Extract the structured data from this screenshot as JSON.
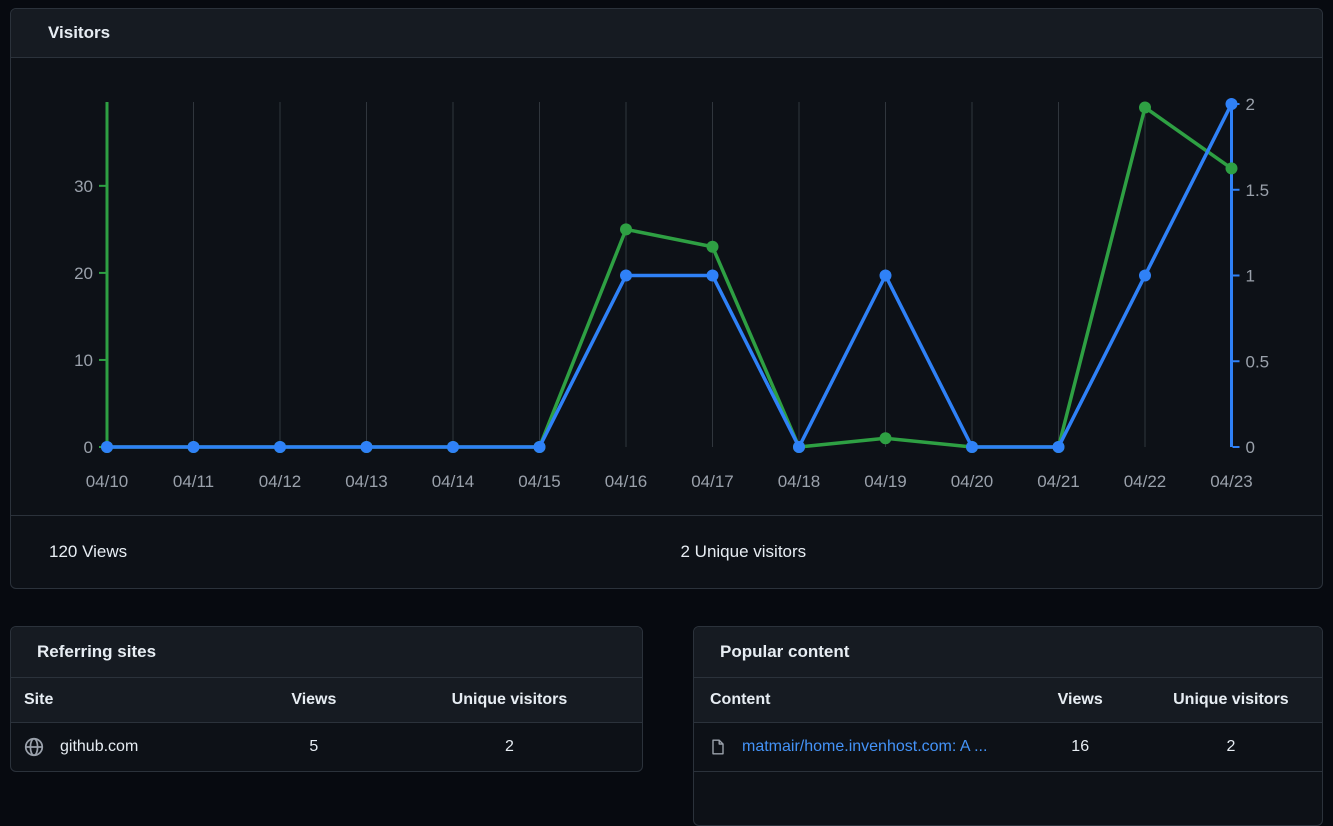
{
  "visitors_panel": {
    "title": "Visitors",
    "views_total_label": "120 Views",
    "unique_total_label": "2 Unique visitors"
  },
  "chart_data": {
    "type": "line",
    "title": "Visitors",
    "x": [
      "04/10",
      "04/11",
      "04/12",
      "04/13",
      "04/14",
      "04/15",
      "04/16",
      "04/17",
      "04/18",
      "04/19",
      "04/20",
      "04/21",
      "04/22",
      "04/23"
    ],
    "series": [
      {
        "name": "Views",
        "axis": "left",
        "color": "#2ea043",
        "values": [
          0,
          0,
          0,
          0,
          0,
          0,
          25,
          23,
          0,
          1,
          0,
          0,
          39,
          32
        ]
      },
      {
        "name": "Unique visitors",
        "axis": "right",
        "color": "#2f81f7",
        "values": [
          0,
          0,
          0,
          0,
          0,
          0,
          1,
          1,
          0,
          1,
          0,
          0,
          1,
          2
        ]
      }
    ],
    "left_axis": {
      "ticks": [
        0,
        10,
        20,
        30
      ],
      "max": 39.4,
      "color": "#2ea043"
    },
    "right_axis": {
      "ticks": [
        0,
        0.5,
        1,
        1.5,
        2
      ],
      "max": 2,
      "color": "#2f81f7"
    },
    "grid": "vertical-only",
    "grid_color": "#30363d",
    "label_color": "#9aa1ab",
    "legend_position": "none"
  },
  "referring_sites": {
    "title": "Referring sites",
    "columns": [
      "Site",
      "Views",
      "Unique visitors"
    ],
    "rows": [
      {
        "icon": "globe-icon",
        "site": "github.com",
        "views": "5",
        "unique": "2"
      }
    ]
  },
  "popular_content": {
    "title": "Popular content",
    "columns": [
      "Content",
      "Views",
      "Unique visitors"
    ],
    "rows": [
      {
        "icon": "file-icon",
        "content": "matmair/home.invenhost.com: A ...",
        "views": "16",
        "unique": "2"
      }
    ]
  },
  "colors": {
    "page_bg": "#070a10",
    "card_bg": "#0d1117",
    "header_bg": "#161b22",
    "border": "#2b323b",
    "text": "#e7edf3",
    "muted_text": "#9aa1ab",
    "link": "#4493f8",
    "views_green": "#2ea043",
    "unique_blue": "#2f81f7"
  }
}
